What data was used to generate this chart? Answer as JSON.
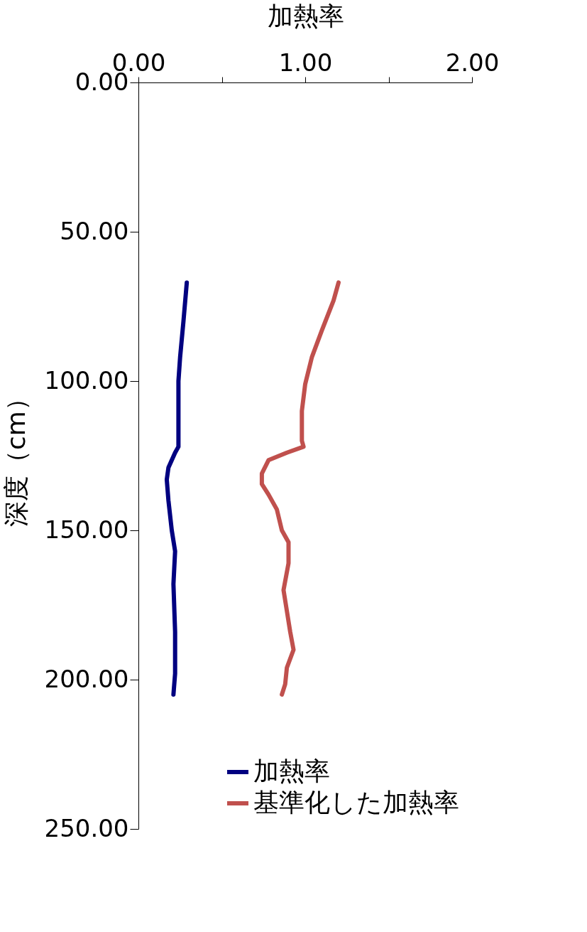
{
  "chart_data": {
    "type": "line",
    "xlabel": "加熱率",
    "ylabel": "深度（cm）",
    "xlim": [
      0,
      2
    ],
    "xticks": [
      {
        "value": 0,
        "label": "0.00"
      },
      {
        "value": 0.5,
        "label": null
      },
      {
        "value": 1,
        "label": "1.00"
      },
      {
        "value": 1.5,
        "label": null
      },
      {
        "value": 2,
        "label": "2.00"
      }
    ],
    "ylim": [
      250,
      0
    ],
    "yticks": [
      {
        "value": 0,
        "label": "0.00"
      },
      {
        "value": 50,
        "label": "50.00"
      },
      {
        "value": 100,
        "label": "100.00"
      },
      {
        "value": 150,
        "label": "150.00"
      },
      {
        "value": 200,
        "label": "200.00"
      },
      {
        "value": 250,
        "label": "250.00"
      }
    ],
    "grid": false,
    "legend": "bottom right",
    "marker": "none",
    "line_style": "solid",
    "series": [
      {
        "name": "加熱率",
        "color": "#000080",
        "x": [
          0.29,
          0.27,
          0.25,
          0.24,
          0.24,
          0.24,
          0.22,
          0.18,
          0.17,
          0.18,
          0.2,
          0.22,
          0.21,
          0.22,
          0.22,
          0.21
        ],
        "values": [
          67,
          80,
          92,
          100,
          111,
          122,
          124,
          129,
          133,
          140,
          150,
          157,
          168,
          184,
          198,
          205
        ]
      },
      {
        "name": "基準化した加熱率",
        "color": "#c0504d",
        "x": [
          1.2,
          1.17,
          1.1,
          1.04,
          1.0,
          0.98,
          0.98,
          0.99,
          0.89,
          0.78,
          0.74,
          0.74,
          0.78,
          0.83,
          0.86,
          0.9,
          0.9,
          0.87,
          0.89,
          0.91,
          0.93,
          0.89,
          0.88,
          0.86
        ],
        "values": [
          67,
          73,
          83,
          92,
          101,
          110,
          120,
          122,
          124,
          126.5,
          131,
          134.5,
          138,
          143,
          150,
          154,
          161,
          170,
          177,
          184,
          190,
          196,
          201.5,
          205
        ]
      }
    ]
  }
}
